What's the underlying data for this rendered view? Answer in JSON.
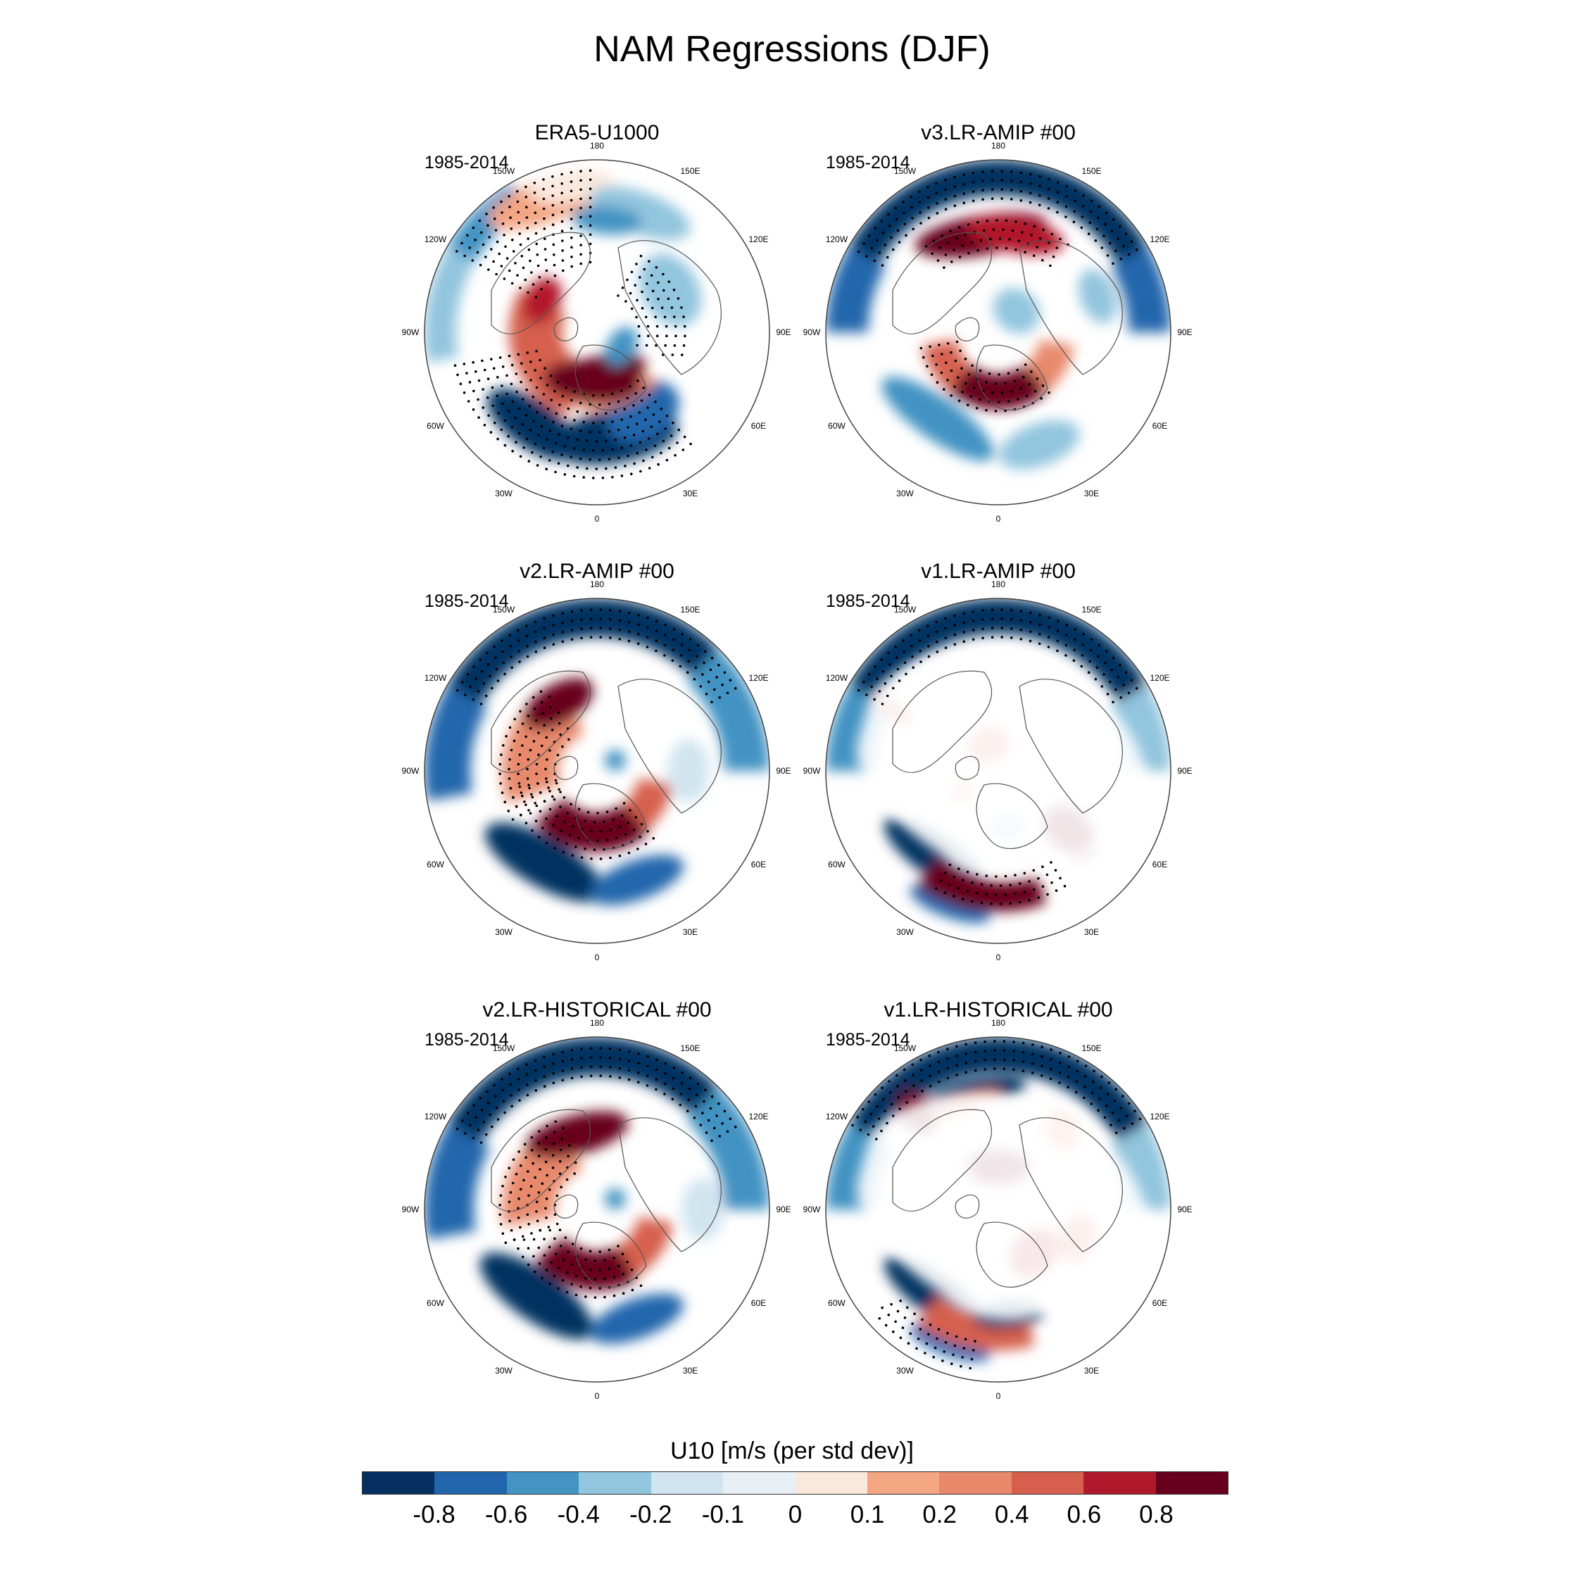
{
  "title": "NAM Regressions (DJF)",
  "panels": [
    {
      "title": "ERA5-U1000",
      "period": "1985-2014",
      "polar_cap": "filled"
    },
    {
      "title": "v3.LR-AMIP  #00",
      "period": "1985-2014",
      "polar_cap": "filled"
    },
    {
      "title": "v2.LR-AMIP  #00",
      "period": "1985-2014",
      "polar_cap": "filled"
    },
    {
      "title": "v1.LR-AMIP  #00",
      "period": "1985-2014",
      "polar_cap": "missing"
    },
    {
      "title": "v2.LR-HISTORICAL  #00",
      "period": "1985-2014",
      "polar_cap": "filled"
    },
    {
      "title": "v1.LR-HISTORICAL  #00",
      "period": "1985-2014",
      "polar_cap": "missing"
    }
  ],
  "longitude_labels": [
    "180",
    "150E",
    "120E",
    "90E",
    "60E",
    "30E",
    "0",
    "30W",
    "60W",
    "90W",
    "120W",
    "150W"
  ],
  "colorbar": {
    "title": "U10 [m/s (per std dev)]",
    "colors": [
      "#053061",
      "#2166ac",
      "#4393c3",
      "#92c5de",
      "#d1e5f0",
      "#e8f0f5",
      "#fbe8dd",
      "#f4a582",
      "#e8896c",
      "#d6604d",
      "#b2182b",
      "#67001f"
    ],
    "tick_labels": [
      "-0.8",
      "-0.6",
      "-0.4",
      "-0.2",
      "-0.1",
      "0",
      "0.1",
      "0.2",
      "0.4",
      "0.6",
      "0.8"
    ]
  }
}
